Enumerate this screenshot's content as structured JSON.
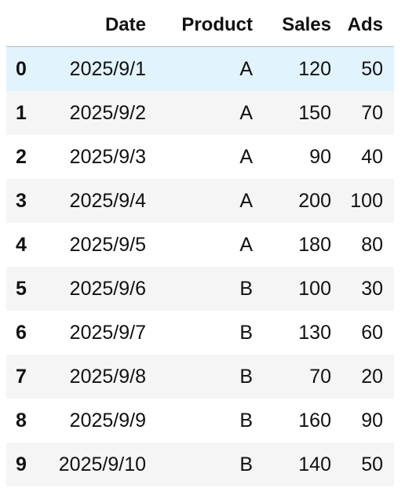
{
  "table": {
    "columns": [
      "Date",
      "Product",
      "Sales",
      "Ads"
    ],
    "rows": [
      {
        "index": "0",
        "date": "2025/9/1",
        "product": "A",
        "sales": "120",
        "ads": "50"
      },
      {
        "index": "1",
        "date": "2025/9/2",
        "product": "A",
        "sales": "150",
        "ads": "70"
      },
      {
        "index": "2",
        "date": "2025/9/3",
        "product": "A",
        "sales": "90",
        "ads": "40"
      },
      {
        "index": "3",
        "date": "2025/9/4",
        "product": "A",
        "sales": "200",
        "ads": "100"
      },
      {
        "index": "4",
        "date": "2025/9/5",
        "product": "A",
        "sales": "180",
        "ads": "80"
      },
      {
        "index": "5",
        "date": "2025/9/6",
        "product": "B",
        "sales": "100",
        "ads": "30"
      },
      {
        "index": "6",
        "date": "2025/9/7",
        "product": "B",
        "sales": "130",
        "ads": "60"
      },
      {
        "index": "7",
        "date": "2025/9/8",
        "product": "B",
        "sales": "70",
        "ads": "20"
      },
      {
        "index": "8",
        "date": "2025/9/9",
        "product": "B",
        "sales": "160",
        "ads": "90"
      },
      {
        "index": "9",
        "date": "2025/9/10",
        "product": "B",
        "sales": "140",
        "ads": "50"
      }
    ]
  },
  "colors": {
    "hover_row": "#e1f3fc",
    "stripe_row": "#f5f5f5",
    "header_rule": "#b9b9b9"
  }
}
